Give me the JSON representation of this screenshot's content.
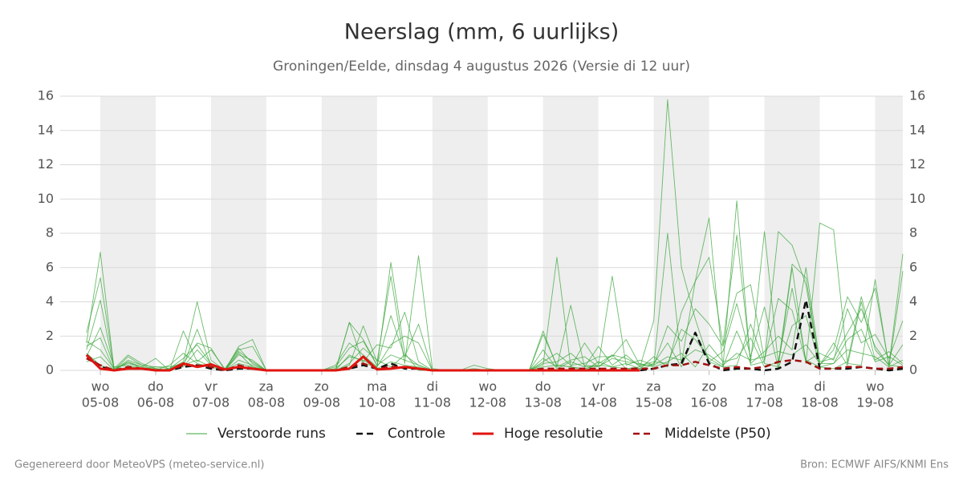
{
  "chart_data": {
    "type": "ensemble-line",
    "title": "Neerslag (mm, 6 uurlijks)",
    "subtitle": "Groningen/Eelde, dinsdag  4 augustus 2026 (Versie di 12 uur)",
    "xlim": [
      -1.9,
      59
    ],
    "xticks": [
      {
        "value": 1,
        "label": "wo",
        "date": "05-08"
      },
      {
        "value": 5,
        "label": "do",
        "date": "06-08"
      },
      {
        "value": 9,
        "label": "vr",
        "date": "07-08"
      },
      {
        "value": 13,
        "label": "za",
        "date": "08-08"
      },
      {
        "value": 17,
        "label": "zo",
        "date": "09-08"
      },
      {
        "value": 21,
        "label": "ma",
        "date": "10-08"
      },
      {
        "value": 25,
        "label": "di",
        "date": "11-08"
      },
      {
        "value": 29,
        "label": "wo",
        "date": "12-08"
      },
      {
        "value": 33,
        "label": "do",
        "date": "13-08"
      },
      {
        "value": 37,
        "label": "vr",
        "date": "14-08"
      },
      {
        "value": 41,
        "label": "za",
        "date": "15-08"
      },
      {
        "value": 45,
        "label": "zo",
        "date": "16-08"
      },
      {
        "value": 49,
        "label": "ma",
        "date": "17-08"
      },
      {
        "value": 53,
        "label": "di",
        "date": "18-08"
      },
      {
        "value": 57,
        "label": "wo",
        "date": "19-08"
      }
    ],
    "ylim": [
      0,
      16
    ],
    "yticks": [
      0,
      2,
      4,
      6,
      8,
      10,
      12,
      14,
      16
    ],
    "grid": true,
    "y_right_labels": true,
    "shade_alternate_days": true,
    "series": [
      {
        "name": "Verstoorde runs",
        "color": "#3aa53a",
        "runs": [
          [
            1.6,
            6.9,
            0,
            0.8,
            0.3,
            0.2,
            0.1,
            0.5,
            4.0,
            0.6,
            0,
            1.4,
            1.8,
            0,
            0,
            0,
            0,
            0,
            0,
            2.8,
            0.4,
            0.2,
            6.3,
            1.0,
            0,
            0,
            0,
            0,
            0,
            0,
            0,
            0,
            0,
            0.3,
            6.6,
            0.2,
            0,
            0.5,
            0.2,
            0.1,
            0.2,
            2.9,
            15.8,
            6.0,
            3.0,
            0.5,
            0.2,
            9.9,
            0.3,
            0.5,
            8.1,
            7.3,
            5.0,
            0.2,
            0.1,
            0.5,
            4.3,
            1.2,
            0.3,
            0.2
          ],
          [
            2.2,
            5.4,
            0.1,
            0.9,
            0.4,
            0.1,
            0,
            2.3,
            0.5,
            1.2,
            0.1,
            1.2,
            1.4,
            0,
            0,
            0,
            0,
            0,
            0,
            0.3,
            2.6,
            0.5,
            5.5,
            0.4,
            6.7,
            0.1,
            0,
            0,
            0.3,
            0.1,
            0,
            0,
            0,
            2.3,
            0.2,
            3.8,
            0.2,
            0.3,
            5.5,
            0.3,
            0.6,
            0.3,
            8.0,
            0.4,
            5.2,
            8.9,
            0.2,
            0.3,
            2.7,
            0.4,
            0.2,
            6.0,
            0.4,
            8.6,
            8.2,
            0.4,
            0.3,
            5.3,
            0.2,
            5.8
          ],
          [
            1.2,
            4.1,
            0,
            0.5,
            0.2,
            0.7,
            0,
            0.3,
            2.4,
            0.3,
            0,
            0.9,
            0.6,
            0,
            0,
            0,
            0,
            0,
            0,
            2.8,
            1.8,
            0.3,
            3.2,
            0.8,
            2.7,
            0,
            0,
            0,
            0.1,
            0,
            0,
            0,
            0,
            2.1,
            0.3,
            0.2,
            1.6,
            0.4,
            0.9,
            0.1,
            0.1,
            0.8,
            0.2,
            3.4,
            5.2,
            6.6,
            1.5,
            7.9,
            0.5,
            8.1,
            0.4,
            6.2,
            5.4,
            0.3,
            1.2,
            4.3,
            2.8,
            4.8,
            0.3,
            6.8
          ],
          [
            0.8,
            2.5,
            0.2,
            0.3,
            0.1,
            0.2,
            0.2,
            0.4,
            1.6,
            1.3,
            0,
            1.0,
            0.2,
            0,
            0,
            0,
            0,
            0,
            0,
            0.9,
            0.5,
            1.5,
            1.3,
            3.4,
            0.5,
            0,
            0,
            0,
            0,
            0,
            0,
            0,
            0,
            0.5,
            1.0,
            0.3,
            0.4,
            0.8,
            0.8,
            1.8,
            0.3,
            0.3,
            2.6,
            1.7,
            3.6,
            2.7,
            1.4,
            4.5,
            5.0,
            0.6,
            4.2,
            3.5,
            0.5,
            1.0,
            0.6,
            3.6,
            1.6,
            2.1,
            0.7,
            2.9
          ],
          [
            1.4,
            1.9,
            0,
            0.5,
            0.1,
            0.1,
            0,
            0.2,
            1.2,
            0.3,
            0,
            1.1,
            0.5,
            0,
            0,
            0,
            0,
            0,
            0.3,
            1.6,
            0.9,
            0.2,
            1.5,
            2.0,
            1.6,
            0,
            0,
            0,
            0,
            0,
            0,
            0,
            0,
            1.2,
            0.1,
            0.5,
            0.2,
            1.4,
            0.3,
            0.9,
            0.2,
            0.4,
            1.6,
            0.2,
            2.2,
            0.5,
            1.1,
            3.9,
            0.8,
            3.7,
            0.1,
            2.6,
            3.2,
            0.3,
            1.6,
            0.3,
            4.0,
            0.6,
            1.1,
            0.4
          ],
          [
            1.7,
            1.2,
            0.1,
            0.4,
            0.2,
            0,
            0.1,
            0.7,
            1.5,
            0.4,
            0,
            0.6,
            0.3,
            0,
            0,
            0,
            0,
            0,
            0.2,
            1.3,
            1.7,
            0.3,
            0.9,
            0.6,
            0.3,
            0,
            0,
            0,
            0,
            0,
            0,
            0,
            0,
            0.4,
            0.5,
            1.0,
            0.3,
            0.2,
            0.9,
            0.7,
            0.3,
            0.5,
            0.4,
            2.4,
            1.8,
            0.7,
            0.2,
            2.3,
            0.4,
            1.1,
            2.0,
            1.2,
            6.0,
            0.5,
            0.7,
            2.2,
            3.6,
            1.4,
            0.3,
            1.5
          ],
          [
            0.5,
            0.8,
            0,
            0.2,
            0.1,
            0.1,
            0,
            0.3,
            0.6,
            0.2,
            0,
            0.4,
            0.2,
            0,
            0,
            0,
            0,
            0,
            0.1,
            0.8,
            0.6,
            0.1,
            0.5,
            0.3,
            0.2,
            0,
            0,
            0,
            0,
            0,
            0,
            0,
            0,
            0.2,
            0.3,
            0.2,
            0.1,
            0.3,
            0.2,
            0.4,
            0.1,
            0.3,
            0.8,
            0.6,
            1.2,
            0.9,
            0.3,
            1.0,
            0.6,
            0.8,
            1.1,
            0.9,
            1.5,
            0.4,
            0.4,
            1.2,
            1.0,
            0.8,
            0.2,
            0.6
          ],
          [
            1.0,
            0.3,
            0,
            0.6,
            0.3,
            0,
            0.3,
            1.0,
            0.4,
            0.2,
            0,
            1.3,
            0.4,
            0,
            0,
            0,
            0,
            0,
            0,
            0.4,
            1.3,
            0.6,
            0.2,
            0.9,
            0.3,
            0,
            0,
            0,
            0,
            0,
            0,
            0,
            0,
            0.7,
            0.2,
            0.6,
            0.8,
            0.2,
            0.7,
            0.5,
            0.4,
            0.2,
            0.5,
            1.0,
            0.2,
            1.5,
            0.5,
            0.7,
            1.9,
            0.2,
            0.5,
            4.8,
            0.6,
            0.2,
            0.4,
            1.8,
            2.4,
            0.5,
            0.8,
            0.3
          ]
        ]
      },
      {
        "name": "Controle",
        "color": "#111111",
        "dash": true,
        "values": [
          0.9,
          0.2,
          0,
          0.1,
          0.1,
          0,
          0,
          0.2,
          0.3,
          0.1,
          0,
          0.1,
          0.1,
          0,
          0,
          0,
          0,
          0,
          0,
          0.1,
          0.3,
          0.1,
          0.4,
          0.1,
          0.1,
          0,
          0,
          0,
          0,
          0,
          0,
          0,
          0,
          0,
          0,
          0,
          0,
          0.1,
          0,
          0,
          0,
          0.1,
          0.3,
          0.4,
          2.2,
          0.4,
          0,
          0.1,
          0.1,
          0,
          0.1,
          0.5,
          4.1,
          0.1,
          0.1,
          0.1,
          0.2,
          0.1,
          0,
          0.1
        ]
      },
      {
        "name": "Hoge resolutie",
        "color": "#e0140f",
        "values": [
          0.9,
          0.1,
          0,
          0.1,
          0.1,
          0,
          0,
          0.4,
          0.2,
          0.35,
          0.05,
          0.2,
          0.1,
          0,
          0,
          0,
          0,
          0,
          0,
          0.1,
          0.8,
          0.05,
          0.1,
          0.2,
          0.1,
          0,
          0,
          0,
          0,
          0,
          0,
          0,
          0,
          0,
          0,
          0,
          0,
          0,
          0,
          0,
          0,
          null,
          null,
          null,
          null,
          null,
          null,
          null,
          null,
          null,
          null,
          null,
          null,
          null,
          null,
          null,
          null,
          null,
          null,
          null
        ]
      },
      {
        "name": "Middelste (P50)",
        "color": "#a01010",
        "dash": true,
        "values": [
          0.7,
          0.3,
          0,
          0.2,
          0.1,
          0,
          0,
          0.3,
          0.3,
          0.2,
          0,
          0.3,
          0.1,
          0,
          0,
          0,
          0,
          0,
          0,
          0.2,
          0.4,
          0.1,
          0.2,
          0.2,
          0.1,
          0,
          0,
          0,
          0,
          0,
          0,
          0,
          0,
          0.1,
          0.1,
          0.1,
          0.1,
          0.1,
          0.1,
          0.1,
          0.1,
          0.1,
          0.3,
          0.3,
          0.5,
          0.3,
          0.1,
          0.2,
          0.1,
          0.2,
          0.5,
          0.6,
          0.5,
          0.1,
          0.1,
          0.2,
          0.2,
          0.1,
          0.1,
          0.2
        ]
      }
    ],
    "footer_left": "Gegenereerd door MeteoVPS (meteo-service.nl)",
    "footer_right": "Bron: ECMWF AIFS/KNMI Ens"
  }
}
